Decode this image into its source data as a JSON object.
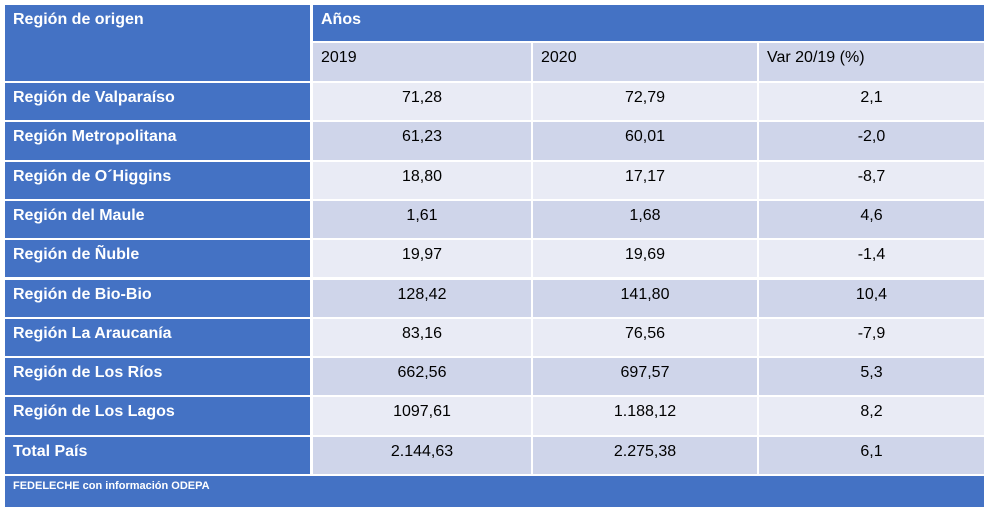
{
  "header": {
    "title": "Región de origen",
    "group": "Años",
    "columns": [
      "2019",
      "2020",
      "Var 20/19 (%)"
    ]
  },
  "rows": [
    [
      "Región de Valparaíso",
      "71,28",
      "72,79",
      "2,1"
    ],
    [
      "Región Metropolitana",
      "61,23",
      "60,01",
      "-2,0"
    ],
    [
      "Región de O´Higgins",
      "18,80",
      "17,17",
      "-8,7"
    ],
    [
      "Región del Maule",
      "1,61",
      "1,68",
      "4,6"
    ],
    [
      "Región de Ñuble",
      "19,97",
      "19,69",
      "-1,4"
    ],
    [
      "Región de Bio-Bio",
      "128,42",
      "141,80",
      "10,4"
    ],
    [
      "Región La Araucanía",
      "83,16",
      "76,56",
      "-7,9"
    ],
    [
      "Región de Los Ríos",
      "662,56",
      "697,57",
      "5,3"
    ],
    [
      "Región de Los Lagos",
      "1097,61",
      "1.188,12",
      "8,2"
    ],
    [
      "Total País",
      "2.144,63",
      "2.275,38",
      "6,1"
    ]
  ],
  "footer": "FEDELECHE con información ODEPA"
}
